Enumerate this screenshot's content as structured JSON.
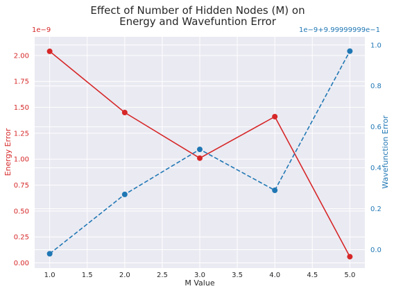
{
  "chart_data": {
    "type": "line",
    "title_line1": "Effect of Number of Hidden Nodes (M) on",
    "title_line2": "Energy and Wavefuntion Error",
    "xlabel": "M Value",
    "x": [
      1.0,
      2.0,
      3.0,
      4.0,
      5.0
    ],
    "xlim": [
      0.8,
      5.2
    ],
    "xticks": [
      "1.0",
      "1.5",
      "2.0",
      "2.5",
      "3.0",
      "3.5",
      "4.0",
      "4.5",
      "5.0"
    ],
    "xtick_values": [
      1.0,
      1.5,
      2.0,
      2.5,
      3.0,
      3.5,
      4.0,
      4.5,
      5.0
    ],
    "grid": true,
    "left_axis": {
      "label": "Energy Error",
      "offset_text": "1e−9",
      "color": "#d62728",
      "ylim": [
        -0.05,
        2.18
      ],
      "ticks": [
        "0.00",
        "0.25",
        "0.50",
        "0.75",
        "1.00",
        "1.25",
        "1.50",
        "1.75",
        "2.00"
      ],
      "tick_values": [
        0.0,
        0.25,
        0.5,
        0.75,
        1.0,
        1.25,
        1.5,
        1.75,
        2.0
      ]
    },
    "right_axis": {
      "label": "Wavefunction Error",
      "offset_text": "1e−9+9.99999999e−1",
      "color": "#1f77b4",
      "ylim": [
        -0.09,
        1.04
      ],
      "ticks": [
        "0.0",
        "0.2",
        "0.4",
        "0.6",
        "0.8",
        "1.0"
      ],
      "tick_values": [
        0.0,
        0.2,
        0.4,
        0.6,
        0.8,
        1.0
      ]
    },
    "series": [
      {
        "axis": "left",
        "style": "solid",
        "color": "#d62728",
        "values": [
          2.04,
          1.45,
          1.01,
          1.41,
          0.06
        ]
      },
      {
        "axis": "right",
        "style": "dashed",
        "color": "#1f77b4",
        "values": [
          -0.02,
          0.27,
          0.49,
          0.29,
          0.97
        ]
      }
    ]
  }
}
